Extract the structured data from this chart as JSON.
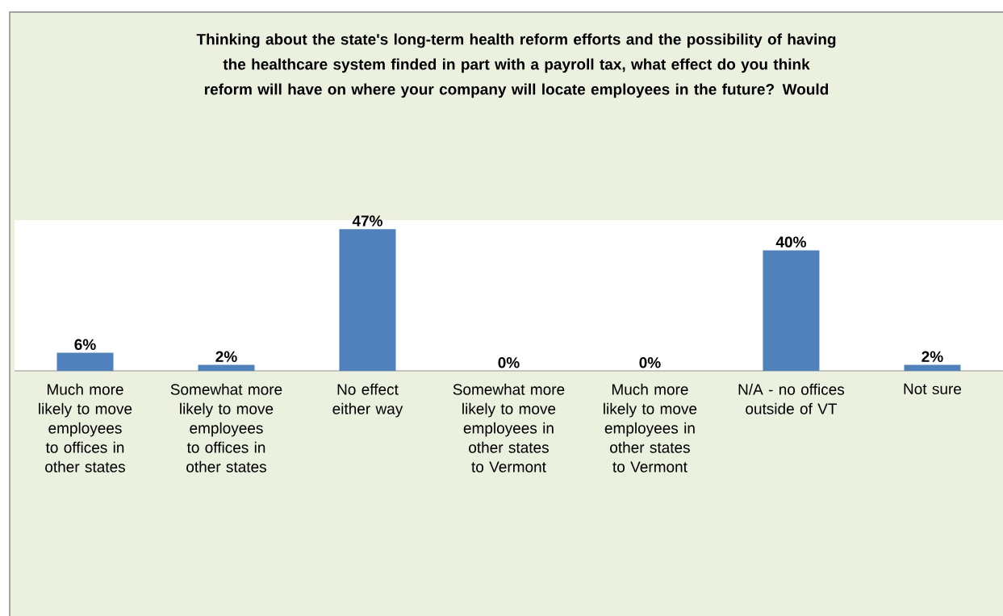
{
  "chart_data": {
    "type": "bar",
    "title": "Thinking about the state's long-term health reform efforts and the possibility of having the healthcare system finded in part with a payroll tax, what effect do you think reform will have on where your company will locate employees in the future? Would",
    "categories": [
      "Much more likely to move employees to offices in other states",
      "Somewhat more likely to move employees to offices in other states",
      "No effect either way",
      "Somewhat more likely to move employees in other states to Vermont",
      "Much more likely to move employees in other states to Vermont",
      "N/A - no offices outside of VT",
      "Not sure"
    ],
    "values": [
      6,
      2,
      47,
      0,
      0,
      40,
      2
    ],
    "value_labels": [
      "6%",
      "2%",
      "47%",
      "0%",
      "0%",
      "40%",
      "2%"
    ],
    "color": "#4f81bd",
    "ylim": [
      0,
      50
    ]
  }
}
